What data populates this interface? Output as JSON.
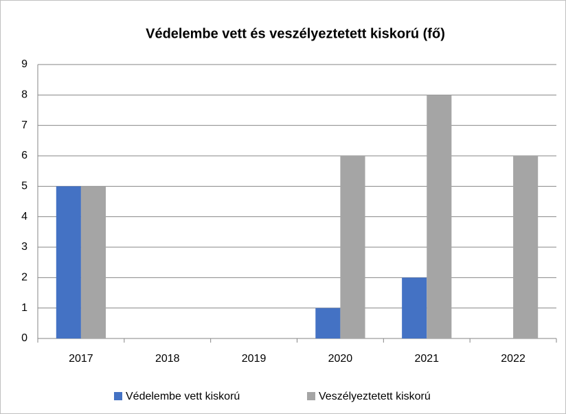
{
  "chart_data": {
    "type": "bar",
    "title": "Védelembe vett és veszélyeztetett kiskorú (fő)",
    "categories": [
      "2017",
      "2018",
      "2019",
      "2020",
      "2021",
      "2022"
    ],
    "series": [
      {
        "name": "Védelembe vett kiskorú",
        "color": "#4472c4",
        "values": [
          5,
          0,
          0,
          1,
          2,
          0
        ]
      },
      {
        "name": "Veszélyeztetett kiskorú",
        "color": "#a5a5a5",
        "values": [
          5,
          0,
          0,
          6,
          8,
          6
        ]
      }
    ],
    "ylim": [
      0,
      9
    ],
    "yticks": [
      0,
      1,
      2,
      3,
      4,
      5,
      6,
      7,
      8,
      9
    ],
    "grid": true,
    "legend": "bottom"
  }
}
